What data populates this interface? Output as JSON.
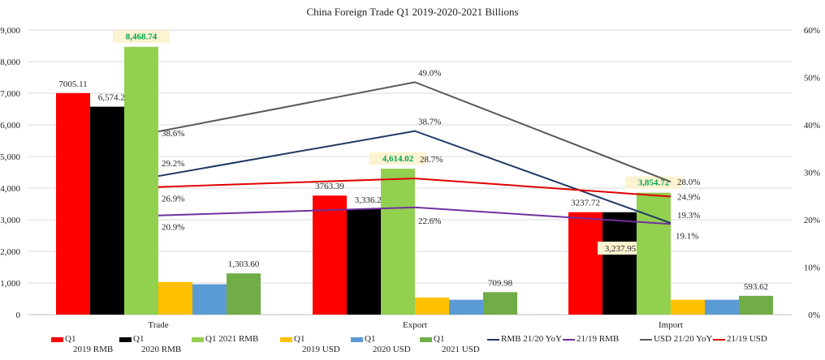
{
  "chart_data": {
    "type": "bar",
    "title": "China Foreign Trade Q1 2019-2020-2021 Billions",
    "categories": [
      "Trade",
      "Export",
      "Import"
    ],
    "y_left": {
      "range": [
        0,
        9000
      ],
      "ticks": [
        "0",
        "1,000",
        "2,000",
        "3,000",
        "4,000",
        "5,000",
        "6,000",
        "7,000",
        "8,000",
        "9,000"
      ]
    },
    "y_right": {
      "range": [
        0,
        60
      ],
      "ticks": [
        "0%",
        "10%",
        "20%",
        "30%",
        "40%",
        "50%",
        "60%"
      ]
    },
    "grid": true,
    "legend_placement": "bottom",
    "bar_series": [
      {
        "name": "Q1 2019 RMB",
        "legend": [
          "Q1",
          "2019 RMB"
        ],
        "color": "#ff0000",
        "values": [
          7005.11,
          3763.39,
          3237.72
        ],
        "labels": [
          "7005.11",
          "3763.39",
          "3237.72"
        ]
      },
      {
        "name": "Q1 2020 RMB",
        "legend": [
          "Q1",
          "2020 RMB"
        ],
        "color": "#000000",
        "values": [
          6574.23,
          3336.28,
          3237.95
        ],
        "labels": [
          "6,574.23",
          "3,336.28",
          "3,237.95"
        ]
      },
      {
        "name": "Q1 2021 RMB",
        "legend": [
          "Q1 2021 RMB",
          ""
        ],
        "color": "#92d050",
        "values": [
          8468.74,
          4614.02,
          3854.72
        ],
        "labels": [
          "8,468.74",
          "4,614.02",
          "3,854.72"
        ]
      },
      {
        "name": "Q1 2019 USD",
        "legend": [
          "Q1",
          "2019 USD"
        ],
        "color": "#ffc000",
        "values": [
          1030,
          540,
          470
        ],
        "labels": [
          "",
          "",
          ""
        ]
      },
      {
        "name": "Q1 2020 USD",
        "legend": [
          "Q1",
          "2020 USD"
        ],
        "color": "#5b9bd5",
        "values": [
          960,
          470,
          470
        ],
        "labels": [
          "",
          "",
          ""
        ]
      },
      {
        "name": "Q1 2021 USD",
        "legend": [
          "Q1",
          "2021 USD"
        ],
        "color": "#70ad47",
        "values": [
          1303.6,
          709.98,
          593.62
        ],
        "labels": [
          "1,303.60",
          "709.98",
          "593.62"
        ]
      }
    ],
    "line_series": [
      {
        "name": "RMB 21/20 YoY",
        "color": "#1f3864",
        "values": [
          29.2,
          38.7,
          19.3
        ],
        "labels": [
          "29.2%",
          "38.7%",
          "19.3%"
        ]
      },
      {
        "name": "21/19 RMB",
        "color": "#7030a0",
        "values": [
          20.9,
          22.6,
          19.1
        ],
        "labels": [
          "20.9%",
          "22.6%",
          "19.1%"
        ]
      },
      {
        "name": "USD 21/20 YoY",
        "color": "#595959",
        "values": [
          38.6,
          49.0,
          28.0
        ],
        "labels": [
          "38.6%",
          "49.0%",
          "28.0%"
        ]
      },
      {
        "name": "21/19 USD",
        "color": "#e00000",
        "values": [
          26.9,
          28.7,
          24.9
        ],
        "labels": [
          "26.9%",
          "28.7%",
          "24.9%"
        ]
      }
    ],
    "highlight_label_color": "#00a650",
    "highlight_bg": "#fdf3d0"
  }
}
